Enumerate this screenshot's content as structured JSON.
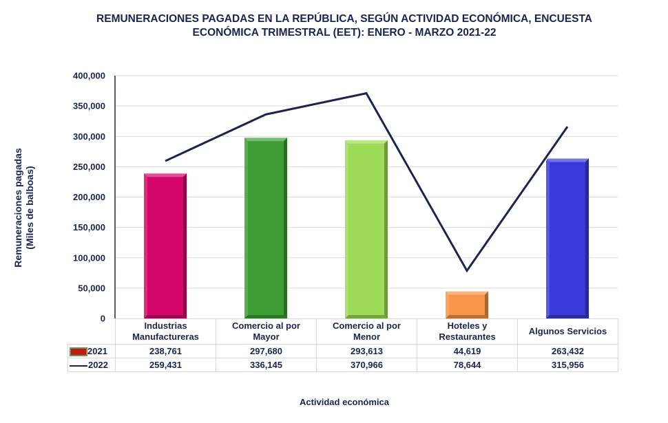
{
  "chart_data": {
    "type": "bar",
    "title": "REMUNERACIONES PAGADAS EN LA REPÚBLICA, SEGÚN ACTIVIDAD ECONÓMICA, ENCUESTA ECONÓMICA TRIMESTRAL (EET): ENERO - MARZO 2021-22",
    "title_lines": [
      "REMUNERACIONES PAGADAS EN LA REPÚBLICA, SEGÚN ACTIVIDAD ECONÓMICA, ENCUESTA",
      "ECONÓMICA TRIMESTRAL (EET): ENERO - MARZO 2021-22"
    ],
    "xlabel": "Actividad económica",
    "ylabel": "Remuneraciones pagadas (Miles de balboas)",
    "ylabel_lines": [
      "Remuneraciones pagadas",
      "(Miles de balboas)"
    ],
    "ylim": [
      0,
      400000
    ],
    "yticks": [
      0,
      50000,
      100000,
      150000,
      200000,
      250000,
      300000,
      350000,
      400000
    ],
    "ytick_labels": [
      "0",
      "50,000",
      "100,000",
      "150,000",
      "200,000",
      "250,000",
      "300,000",
      "350,000",
      "400,000"
    ],
    "grid": true,
    "legend_placement": "data-table",
    "categories": [
      "Industrias Manufactureras",
      "Comercio al por Mayor",
      "Comercio al por Menor",
      "Hoteles y Restaurantes",
      "Algunos Servicios"
    ],
    "category_lines": [
      [
        "Industrias",
        "Manufactureras"
      ],
      [
        "Comercio al por",
        "Mayor"
      ],
      [
        "Comercio al por",
        "Menor"
      ],
      [
        "Hoteles y",
        "Restaurantes"
      ],
      [
        "Algunos Servicios"
      ]
    ],
    "series": [
      {
        "name": "2021",
        "type": "bar",
        "values": [
          238761,
          297680,
          293613,
          44619,
          263432
        ],
        "value_labels": [
          "238,761",
          "297,680",
          "293,613",
          "44,619",
          "263,432"
        ],
        "colors": [
          "#d6076a",
          "#3e9e35",
          "#9edb57",
          "#f79646",
          "#3a3adb"
        ],
        "legend_color": "#c0181f"
      },
      {
        "name": "2022",
        "type": "line",
        "values": [
          259431,
          336145,
          370966,
          78644,
          315956
        ],
        "value_labels": [
          "259,431",
          "336,145",
          "370,966",
          "78,644",
          "315,956"
        ],
        "color": "#1a2451"
      }
    ]
  }
}
